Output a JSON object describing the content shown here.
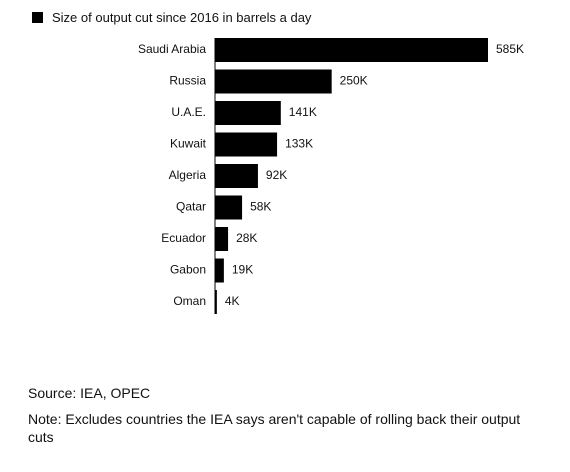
{
  "chart_data": {
    "type": "bar",
    "orientation": "horizontal",
    "legend": "Size of output cut since 2016 in barrels a day",
    "categories": [
      "Saudi Arabia",
      "Russia",
      "U.A.E.",
      "Kuwait",
      "Algeria",
      "Qatar",
      "Ecuador",
      "Gabon",
      "Oman"
    ],
    "values": [
      585,
      250,
      141,
      133,
      92,
      58,
      28,
      19,
      4
    ],
    "data_labels": [
      "585K",
      "250K",
      "141K",
      "133K",
      "92K",
      "58K",
      "28K",
      "19K",
      "4K"
    ],
    "unit": "thousand barrels a day",
    "xlim": [
      0,
      585
    ],
    "grid": false,
    "legend_position": "top-left",
    "bar_color": "#000000"
  },
  "footer": {
    "source": "Source: IEA, OPEC",
    "note": "Note: Excludes countries the IEA says aren't capable of rolling back their output cuts"
  }
}
